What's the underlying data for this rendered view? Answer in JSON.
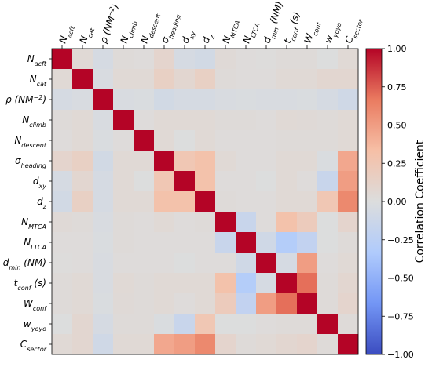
{
  "chart_data": {
    "type": "heatmap",
    "title": "",
    "labels": [
      "N_acft",
      "N_cat",
      "ρ (NM^−2)",
      "N_climb",
      "N_descent",
      "σ_heading",
      "d_xy",
      "d_z",
      "N_MTCA",
      "N_LTCA",
      "d_min (NM)",
      "t_conf (s)",
      "W_conf",
      "w_yoyo",
      "C_sector"
    ],
    "labels_rich": [
      {
        "base": "N",
        "sub": "acft",
        "suffix": ""
      },
      {
        "base": "N",
        "sub": "cat",
        "suffix": ""
      },
      {
        "base": "ρ (NM",
        "sup": "−2",
        "suffix": ")"
      },
      {
        "base": "N",
        "sub": "climb",
        "suffix": ""
      },
      {
        "base": "N",
        "sub": "descent",
        "suffix": ""
      },
      {
        "base": "σ",
        "sub": "heading",
        "suffix": ""
      },
      {
        "base": "d",
        "sub": "xy",
        "suffix": ""
      },
      {
        "base": "d",
        "sub": "z",
        "suffix": ""
      },
      {
        "base": "N",
        "sub": "MTCA",
        "suffix": ""
      },
      {
        "base": "N",
        "sub": "LTCA",
        "suffix": ""
      },
      {
        "base": "d",
        "sub": "min",
        "suffix": " (NM)"
      },
      {
        "base": "t",
        "sub": "conf",
        "suffix": " (s)"
      },
      {
        "base": "W",
        "sub": "conf",
        "suffix": ""
      },
      {
        "base": "w",
        "sub": "yoyo",
        "suffix": ""
      },
      {
        "base": "C",
        "sub": "sector",
        "suffix": ""
      }
    ],
    "matrix": [
      [
        1.0,
        0.05,
        -0.05,
        0.03,
        0.02,
        0.1,
        -0.05,
        -0.08,
        0.04,
        0.02,
        0.01,
        0.03,
        0.03,
        0.0,
        0.05
      ],
      [
        0.05,
        1.0,
        -0.03,
        0.05,
        0.05,
        0.15,
        0.08,
        0.15,
        0.03,
        0.02,
        0.02,
        0.05,
        0.05,
        0.08,
        0.08
      ],
      [
        -0.05,
        -0.03,
        1.0,
        -0.03,
        -0.02,
        -0.08,
        -0.05,
        -0.05,
        -0.03,
        -0.02,
        -0.03,
        -0.03,
        -0.02,
        -0.05,
        -0.1
      ],
      [
        0.03,
        0.05,
        -0.03,
        1.0,
        0.02,
        0.05,
        0.05,
        0.05,
        0.03,
        0.03,
        0.02,
        0.05,
        0.04,
        0.03,
        0.05
      ],
      [
        0.02,
        0.05,
        -0.02,
        0.02,
        1.0,
        0.05,
        0.0,
        0.05,
        0.02,
        0.02,
        0.02,
        0.03,
        0.03,
        0.03,
        0.05
      ],
      [
        0.1,
        0.15,
        -0.08,
        0.05,
        0.05,
        1.0,
        0.25,
        0.3,
        0.05,
        0.02,
        0.02,
        0.05,
        0.05,
        -0.02,
        0.45
      ],
      [
        -0.05,
        0.08,
        -0.05,
        0.05,
        0.0,
        0.25,
        1.0,
        0.3,
        0.02,
        0.02,
        0.0,
        0.05,
        0.02,
        -0.15,
        0.5
      ],
      [
        -0.08,
        0.15,
        -0.05,
        0.05,
        0.05,
        0.3,
        0.3,
        1.0,
        0.03,
        0.02,
        0.02,
        0.05,
        0.05,
        0.25,
        0.6
      ],
      [
        0.04,
        0.03,
        -0.03,
        0.03,
        0.02,
        0.05,
        0.02,
        0.03,
        1.0,
        -0.15,
        0.02,
        0.3,
        0.2,
        0.0,
        0.1
      ],
      [
        0.02,
        0.02,
        -0.02,
        0.03,
        0.02,
        0.02,
        0.02,
        0.02,
        -0.15,
        1.0,
        -0.1,
        -0.3,
        -0.2,
        0.0,
        0.03
      ],
      [
        0.01,
        0.02,
        -0.03,
        0.02,
        0.02,
        0.02,
        0.0,
        0.02,
        0.02,
        -0.1,
        1.0,
        -0.05,
        0.5,
        0.02,
        0.05
      ],
      [
        0.03,
        0.05,
        -0.03,
        0.05,
        0.03,
        0.05,
        0.05,
        0.05,
        0.3,
        -0.3,
        -0.05,
        1.0,
        0.7,
        0.03,
        0.08
      ],
      [
        0.03,
        0.05,
        -0.02,
        0.04,
        0.03,
        0.05,
        0.02,
        0.05,
        0.2,
        -0.2,
        0.5,
        0.7,
        1.0,
        0.03,
        0.1
      ],
      [
        0.0,
        0.08,
        -0.05,
        0.03,
        0.03,
        -0.02,
        -0.15,
        0.25,
        0.0,
        0.0,
        0.02,
        0.03,
        0.03,
        1.0,
        0.03
      ],
      [
        0.05,
        0.08,
        -0.1,
        0.05,
        0.05,
        0.45,
        0.5,
        0.6,
        0.1,
        0.03,
        0.05,
        0.08,
        0.1,
        0.03,
        1.0
      ]
    ],
    "colorbar": {
      "label": "Correlation Coefficient",
      "range": [
        -1.0,
        1.0
      ],
      "ticks": [
        -1.0,
        -0.75,
        -0.5,
        -0.25,
        0.0,
        0.25,
        0.5,
        0.75,
        1.0
      ],
      "tick_labels": [
        "−1.00",
        "−0.75",
        "−0.50",
        "−0.25",
        "0.00",
        "0.25",
        "0.50",
        "0.75",
        "1.00"
      ],
      "colormap": "coolwarm",
      "colormap_stops": [
        "#3b4cc0",
        "#7396f5",
        "#b0cbfc",
        "#dcdddd",
        "#f6bfa6",
        "#ea7b60",
        "#b40426"
      ]
    },
    "xaxis_position": "top",
    "grid": false
  }
}
